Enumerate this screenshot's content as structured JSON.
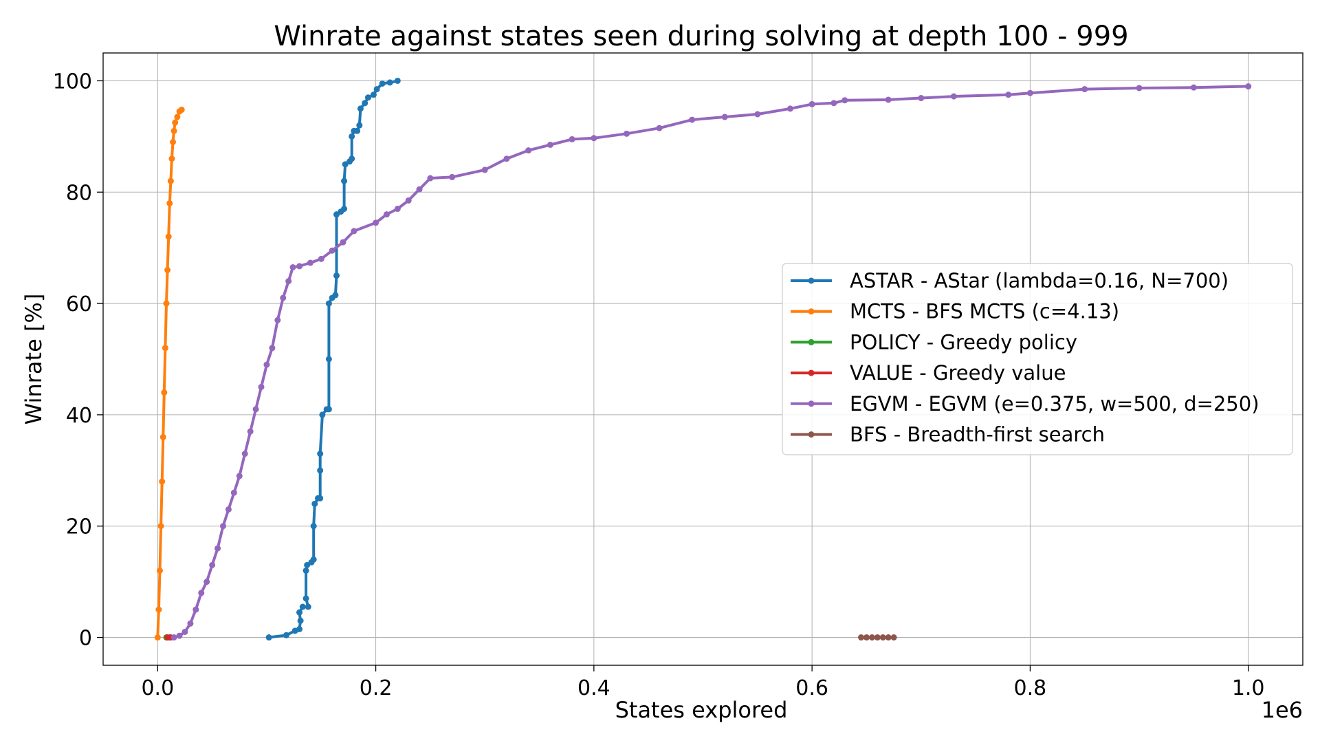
{
  "chart_data": {
    "type": "line",
    "title": "Winrate against states seen during solving at depth 100 - 999",
    "xlabel": "States explored",
    "ylabel": "Winrate [%]",
    "x_offset_label": "1e6",
    "xlim": [
      -0.05,
      1.05
    ],
    "ylim": [
      -5,
      105
    ],
    "x_ticks": [
      0.0,
      0.2,
      0.4,
      0.6,
      0.8,
      1.0
    ],
    "x_tick_labels": [
      "0.0",
      "0.2",
      "0.4",
      "0.6",
      "0.8",
      "1.0"
    ],
    "y_ticks": [
      0,
      20,
      40,
      60,
      80,
      100
    ],
    "y_tick_labels": [
      "0",
      "20",
      "40",
      "60",
      "80",
      "100"
    ],
    "grid": true,
    "legend_position": "center-right",
    "series": [
      {
        "name": "ASTAR - AStar (lambda=0.16, N=700)",
        "color": "#1f77b4",
        "points": [
          [
            0.102,
            0
          ],
          [
            0.118,
            0.4
          ],
          [
            0.126,
            1.2
          ],
          [
            0.13,
            1.5
          ],
          [
            0.131,
            3
          ],
          [
            0.13,
            4.5
          ],
          [
            0.133,
            5.5
          ],
          [
            0.138,
            5.5
          ],
          [
            0.136,
            7
          ],
          [
            0.136,
            12
          ],
          [
            0.137,
            13
          ],
          [
            0.141,
            13.5
          ],
          [
            0.143,
            14
          ],
          [
            0.143,
            20
          ],
          [
            0.144,
            24
          ],
          [
            0.147,
            25
          ],
          [
            0.149,
            25
          ],
          [
            0.149,
            30
          ],
          [
            0.149,
            33
          ],
          [
            0.151,
            40
          ],
          [
            0.155,
            41
          ],
          [
            0.157,
            41
          ],
          [
            0.157,
            50
          ],
          [
            0.157,
            60
          ],
          [
            0.16,
            61
          ],
          [
            0.163,
            61.5
          ],
          [
            0.164,
            65
          ],
          [
            0.164,
            76
          ],
          [
            0.168,
            76.5
          ],
          [
            0.171,
            77
          ],
          [
            0.171,
            82
          ],
          [
            0.172,
            85
          ],
          [
            0.176,
            85.5
          ],
          [
            0.178,
            86
          ],
          [
            0.178,
            90
          ],
          [
            0.18,
            91
          ],
          [
            0.183,
            91
          ],
          [
            0.185,
            92
          ],
          [
            0.186,
            95
          ],
          [
            0.19,
            96
          ],
          [
            0.193,
            97
          ],
          [
            0.198,
            97.5
          ],
          [
            0.201,
            98.5
          ],
          [
            0.206,
            99.5
          ],
          [
            0.213,
            99.7
          ],
          [
            0.22,
            100
          ]
        ]
      },
      {
        "name": "MCTS - BFS MCTS (c=4.13)",
        "color": "#ff7f0e",
        "points": [
          [
            0.0,
            0
          ],
          [
            0.001,
            5
          ],
          [
            0.002,
            12
          ],
          [
            0.003,
            20
          ],
          [
            0.004,
            28
          ],
          [
            0.005,
            36
          ],
          [
            0.006,
            44
          ],
          [
            0.007,
            52
          ],
          [
            0.008,
            60
          ],
          [
            0.009,
            66
          ],
          [
            0.01,
            72
          ],
          [
            0.011,
            78
          ],
          [
            0.012,
            82
          ],
          [
            0.013,
            86
          ],
          [
            0.014,
            89
          ],
          [
            0.015,
            91
          ],
          [
            0.016,
            92.5
          ],
          [
            0.018,
            93.5
          ],
          [
            0.02,
            94.5
          ],
          [
            0.022,
            94.8
          ]
        ]
      },
      {
        "name": "POLICY - Greedy policy",
        "color": "#2ca02c",
        "points": [
          [
            0.008,
            0
          ],
          [
            0.011,
            0
          ]
        ]
      },
      {
        "name": "VALUE - Greedy value",
        "color": "#d62728",
        "points": [
          [
            0.009,
            0
          ],
          [
            0.012,
            0
          ]
        ]
      },
      {
        "name": "EGVM - EGVM (e=0.375, w=500, d=250)",
        "color": "#9467bd",
        "points": [
          [
            0.015,
            0
          ],
          [
            0.02,
            0.3
          ],
          [
            0.025,
            1
          ],
          [
            0.03,
            2.5
          ],
          [
            0.035,
            5
          ],
          [
            0.04,
            8
          ],
          [
            0.045,
            10
          ],
          [
            0.05,
            13
          ],
          [
            0.055,
            16
          ],
          [
            0.06,
            20
          ],
          [
            0.065,
            23
          ],
          [
            0.07,
            26
          ],
          [
            0.075,
            29
          ],
          [
            0.08,
            33
          ],
          [
            0.085,
            37
          ],
          [
            0.09,
            41
          ],
          [
            0.095,
            45
          ],
          [
            0.1,
            49
          ],
          [
            0.105,
            52
          ],
          [
            0.11,
            57
          ],
          [
            0.115,
            61
          ],
          [
            0.12,
            64
          ],
          [
            0.124,
            66.5
          ],
          [
            0.13,
            66.7
          ],
          [
            0.14,
            67.3
          ],
          [
            0.15,
            68
          ],
          [
            0.16,
            69.5
          ],
          [
            0.17,
            71
          ],
          [
            0.18,
            73
          ],
          [
            0.2,
            74.5
          ],
          [
            0.21,
            76
          ],
          [
            0.22,
            77
          ],
          [
            0.23,
            78.5
          ],
          [
            0.24,
            80.5
          ],
          [
            0.25,
            82.5
          ],
          [
            0.27,
            82.7
          ],
          [
            0.3,
            84
          ],
          [
            0.32,
            86
          ],
          [
            0.34,
            87.5
          ],
          [
            0.36,
            88.5
          ],
          [
            0.38,
            89.5
          ],
          [
            0.4,
            89.7
          ],
          [
            0.43,
            90.5
          ],
          [
            0.46,
            91.5
          ],
          [
            0.49,
            93
          ],
          [
            0.52,
            93.5
          ],
          [
            0.55,
            94
          ],
          [
            0.58,
            95
          ],
          [
            0.6,
            95.8
          ],
          [
            0.62,
            96
          ],
          [
            0.63,
            96.5
          ],
          [
            0.67,
            96.6
          ],
          [
            0.7,
            96.9
          ],
          [
            0.73,
            97.2
          ],
          [
            0.78,
            97.5
          ],
          [
            0.8,
            97.8
          ],
          [
            0.85,
            98.5
          ],
          [
            0.9,
            98.7
          ],
          [
            0.95,
            98.8
          ],
          [
            1.0,
            99
          ]
        ]
      },
      {
        "name": "BFS - Breadth-first search",
        "color": "#8c564b",
        "points": [
          [
            0.645,
            0
          ],
          [
            0.65,
            0
          ],
          [
            0.655,
            0
          ],
          [
            0.66,
            0
          ],
          [
            0.665,
            0
          ],
          [
            0.67,
            0
          ],
          [
            0.675,
            0
          ]
        ]
      }
    ]
  }
}
